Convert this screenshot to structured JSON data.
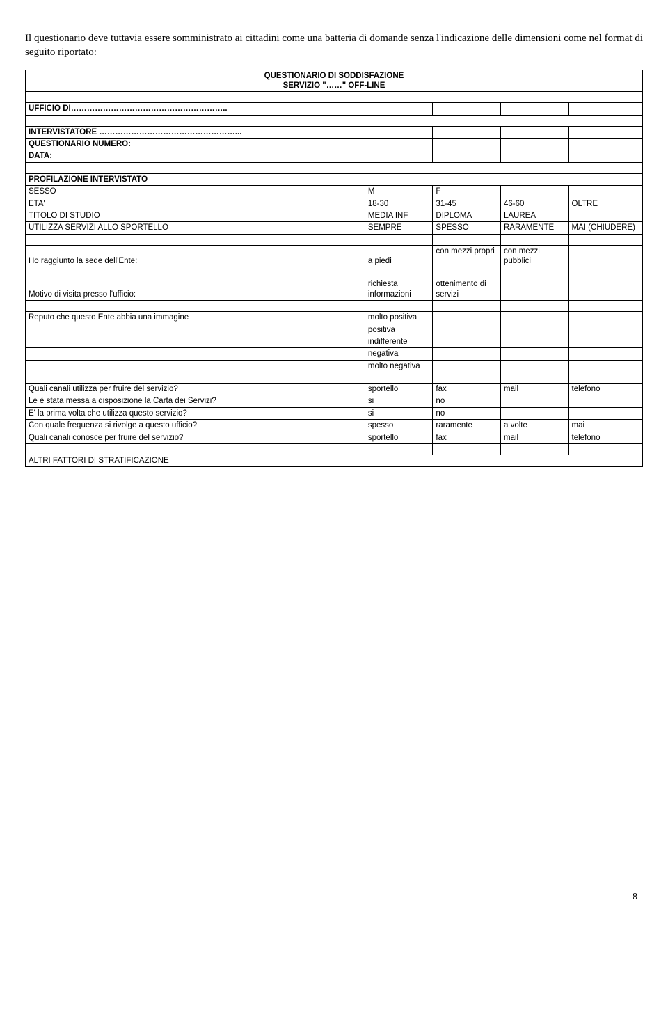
{
  "intro": "Il questionario deve tuttavia essere somministrato ai cittadini come una batteria di domande senza l'indicazione delle dimensioni come nel format di seguito riportato:",
  "title_line1": "QUESTIONARIO DI SODDISFAZIONE",
  "title_line2": "SERVIZIO \"……\" OFF-LINE",
  "header": {
    "ufficio": "UFFICIO DI…………………………………………………..",
    "intervistatore": "INTERVISTATORE ……………………………………………...",
    "numero": "QUESTIONARIO NUMERO:",
    "data": "DATA:"
  },
  "section_profilazione": "PROFILAZIONE INTERVISTATO",
  "rows": {
    "sesso": {
      "label": "SESSO",
      "o1": "M",
      "o2": "F",
      "o3": "",
      "o4": ""
    },
    "eta": {
      "label": "ETA'",
      "o1": "18-30",
      "o2": "31-45",
      "o3": "46-60",
      "o4": "OLTRE"
    },
    "titolo": {
      "label": "TITOLO DI STUDIO",
      "o1": "MEDIA INF",
      "o2": "DIPLOMA",
      "o3": "LAUREA",
      "o4": ""
    },
    "utilizza": {
      "label": "UTILIZZA SERVIZI ALLO SPORTELLO",
      "o1": "SEMPRE",
      "o2": "SPESSO",
      "o3": "RARAMENTE",
      "o4": "MAI (CHIUDERE)"
    },
    "raggiunto": {
      "label": "Ho raggiunto la sede dell'Ente:",
      "o1": "a piedi",
      "o2": "con mezzi propri",
      "o3": "con mezzi pubblici",
      "o4": ""
    },
    "motivo": {
      "label": "Motivo di visita presso l'ufficio:",
      "o1": "richiesta informazioni",
      "o2": "ottenimento di servizi",
      "o3": "",
      "o4": ""
    },
    "immagine": {
      "label": "Reputo che questo Ente abbia una immagine",
      "v1": "molto positiva",
      "v2": "positiva",
      "v3": "indifferente",
      "v4": "negativa",
      "v5": "molto negativa"
    },
    "canali_utilizza": {
      "label": "Quali canali utilizza per fruire del servizio?",
      "o1": "sportello",
      "o2": "fax",
      "o3": "mail",
      "o4": "telefono"
    },
    "carta": {
      "label": "Le è stata messa a disposizione la Carta dei Servizi?",
      "o1": "si",
      "o2": "no",
      "o3": "",
      "o4": ""
    },
    "prima": {
      "label": "E' la prima volta che utilizza questo servizio?",
      "o1": "si",
      "o2": "no",
      "o3": "",
      "o4": ""
    },
    "freq": {
      "label": "Con quale frequenza si rivolge a questo ufficio?",
      "o1": "spesso",
      "o2": "raramente",
      "o3": "a volte",
      "o4": "mai"
    },
    "canali_conosce": {
      "label": "Quali canali conosce per fruire del servizio?",
      "o1": "sportello",
      "o2": "fax",
      "o3": "mail",
      "o4": "telefono"
    }
  },
  "section_altri": "ALTRI FATTORI DI STRATIFICAZIONE",
  "page_number": "8"
}
